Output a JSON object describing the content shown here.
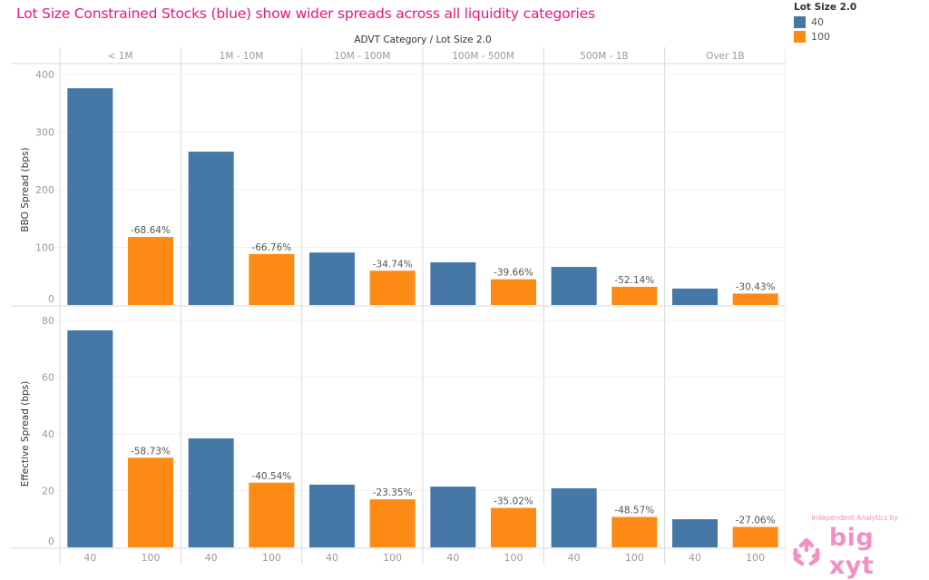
{
  "title": "Lot Size Constrained Stocks (blue) show wider spreads across all liquidity categories",
  "legend": {
    "title": "Lot Size 2.0",
    "items": [
      {
        "label": "40",
        "color": "#4577a7"
      },
      {
        "label": "100",
        "color": "#fd8a14"
      }
    ]
  },
  "logo": {
    "tagline": "Independent Analytics by",
    "name": "big xyt",
    "icon": "cube-arrows-icon",
    "color": "#f48fc6"
  },
  "chart_data": {
    "type": "bar",
    "title": "Lot Size Constrained Stocks (blue) show wider spreads across all liquidity categories",
    "column_header": "ADVT Category  /  Lot Size 2.0",
    "categories": [
      "< 1M",
      "1M - 10M",
      "10M - 100M",
      "100M - 500M",
      "500M - 1B",
      "Over 1B"
    ],
    "sub_categories": [
      "40",
      "100"
    ],
    "colors": {
      "40": "#4577a7",
      "100": "#fd8a14"
    },
    "legend_position": "top-right",
    "grid": true,
    "panels": [
      {
        "ylabel": "BBO Spread (bps)",
        "ylim": [
          0,
          400
        ],
        "yticks": [
          0,
          100,
          200,
          300,
          400
        ],
        "series": [
          {
            "name": "40",
            "values": [
              376,
              266,
              91,
              74,
              66,
              28.5
            ]
          },
          {
            "name": "100",
            "values": [
              118,
              88.4,
              59.4,
              44.6,
              31.6,
              19.8
            ]
          }
        ],
        "annotations": [
          "-68.64%",
          "-66.76%",
          "-34.74%",
          "-39.66%",
          "-52.14%",
          "-30.43%"
        ]
      },
      {
        "ylabel": "Effective Spread (bps)",
        "ylim": [
          0,
          80
        ],
        "yticks": [
          0,
          20,
          40,
          60,
          80
        ],
        "series": [
          {
            "name": "40",
            "values": [
              76.5,
              38.4,
              22.1,
              21.4,
              20.8,
              9.9
            ]
          },
          {
            "name": "100",
            "values": [
              31.6,
              22.8,
              16.9,
              13.9,
              10.7,
              7.2
            ]
          }
        ],
        "annotations": [
          "-58.73%",
          "-40.54%",
          "-23.35%",
          "-35.02%",
          "-48.57%",
          "-27.06%"
        ]
      }
    ]
  }
}
